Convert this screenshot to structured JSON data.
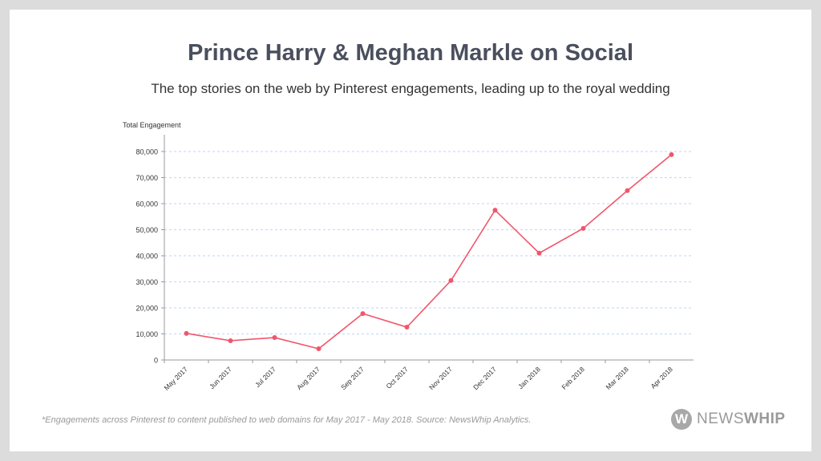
{
  "title": "Prince Harry & Meghan Markle on Social",
  "subtitle": "The top stories on the web by Pinterest engagements, leading up to the royal wedding",
  "footnote": "*Engagements across Pinterest to content published to web domains for May 2017 - May 2018. Source: NewsWhip Analytics.",
  "logo": {
    "icon": "W",
    "text_light": "NEWS",
    "text_bold": "WHIP"
  },
  "colors": {
    "line": "#f0566b",
    "grid": "#c9dcfa",
    "axis": "#999999"
  },
  "chart_data": {
    "type": "line",
    "title": "Prince Harry & Meghan Markle on Social",
    "ylabel": "Total Engagement",
    "xlabel": "",
    "categories": [
      "May 2017",
      "Jun 2017",
      "Jul 2017",
      "Aug 2017",
      "Sep 2017",
      "Oct 2017",
      "Nov 2017",
      "Dec 2017",
      "Jan 2018",
      "Feb 2018",
      "Mar 2018",
      "Apr 2018"
    ],
    "series": [
      {
        "name": "Total Engagement",
        "values": [
          10200,
          7400,
          8600,
          4300,
          17800,
          12600,
          30500,
          57500,
          41000,
          50500,
          65000,
          78800
        ]
      }
    ],
    "ylim": [
      0,
      85000
    ],
    "yticks": [
      0,
      10000,
      20000,
      30000,
      40000,
      50000,
      60000,
      70000,
      80000
    ],
    "ytick_labels": [
      "0",
      "10,000",
      "20,000",
      "30,000",
      "40,000",
      "50,000",
      "60,000",
      "70,000",
      "80,000"
    ],
    "grid": true,
    "legend": "none"
  }
}
